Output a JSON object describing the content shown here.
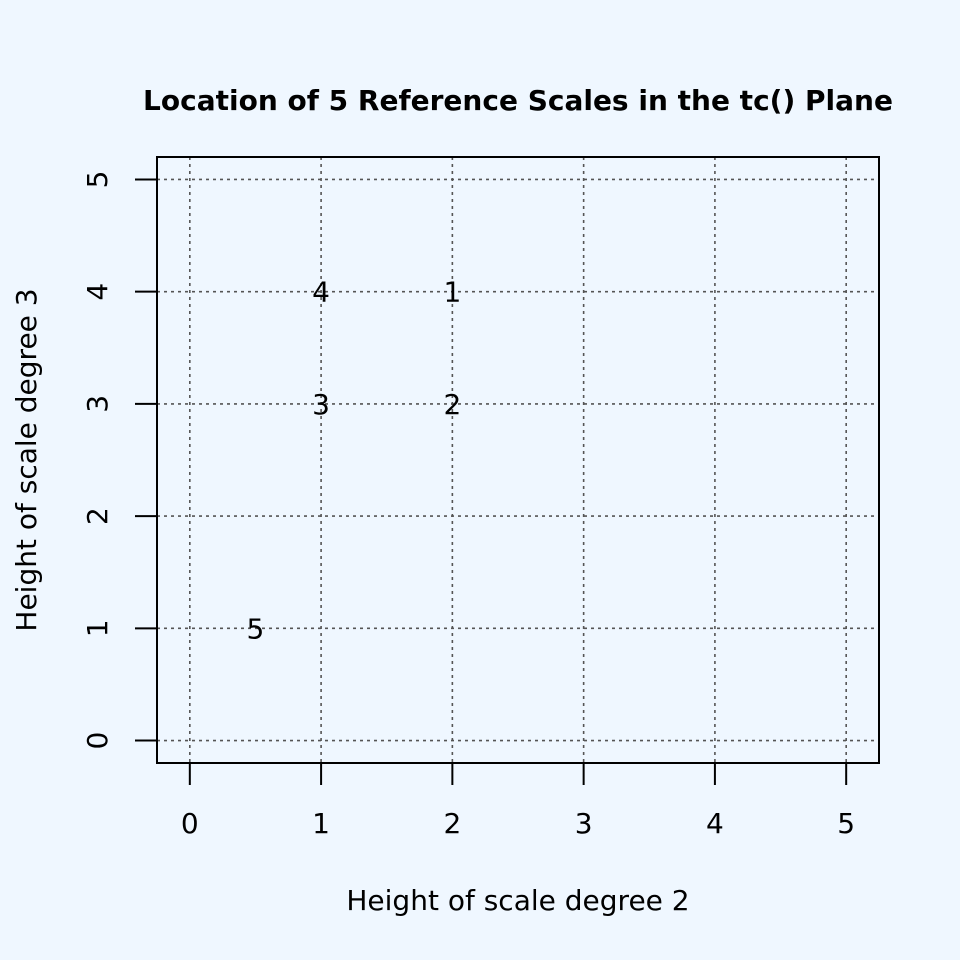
{
  "chart_data": {
    "type": "scatter",
    "title": "Location of 5 Reference Scales in the tc() Plane",
    "xlabel": "Height of scale degree 2",
    "ylabel": "Height of scale degree 3",
    "xlim": [
      -0.25,
      5.25
    ],
    "ylim": [
      -0.2,
      5.2
    ],
    "xticks": [
      0,
      1,
      2,
      3,
      4,
      5
    ],
    "yticks": [
      0,
      1,
      2,
      3,
      4,
      5
    ],
    "grid": true,
    "marker": "text-label",
    "points": [
      {
        "label": "1",
        "x": 2,
        "y": 4
      },
      {
        "label": "2",
        "x": 2,
        "y": 3
      },
      {
        "label": "3",
        "x": 1,
        "y": 3
      },
      {
        "label": "4",
        "x": 1,
        "y": 4
      },
      {
        "label": "5",
        "x": 0.5,
        "y": 1
      }
    ]
  }
}
